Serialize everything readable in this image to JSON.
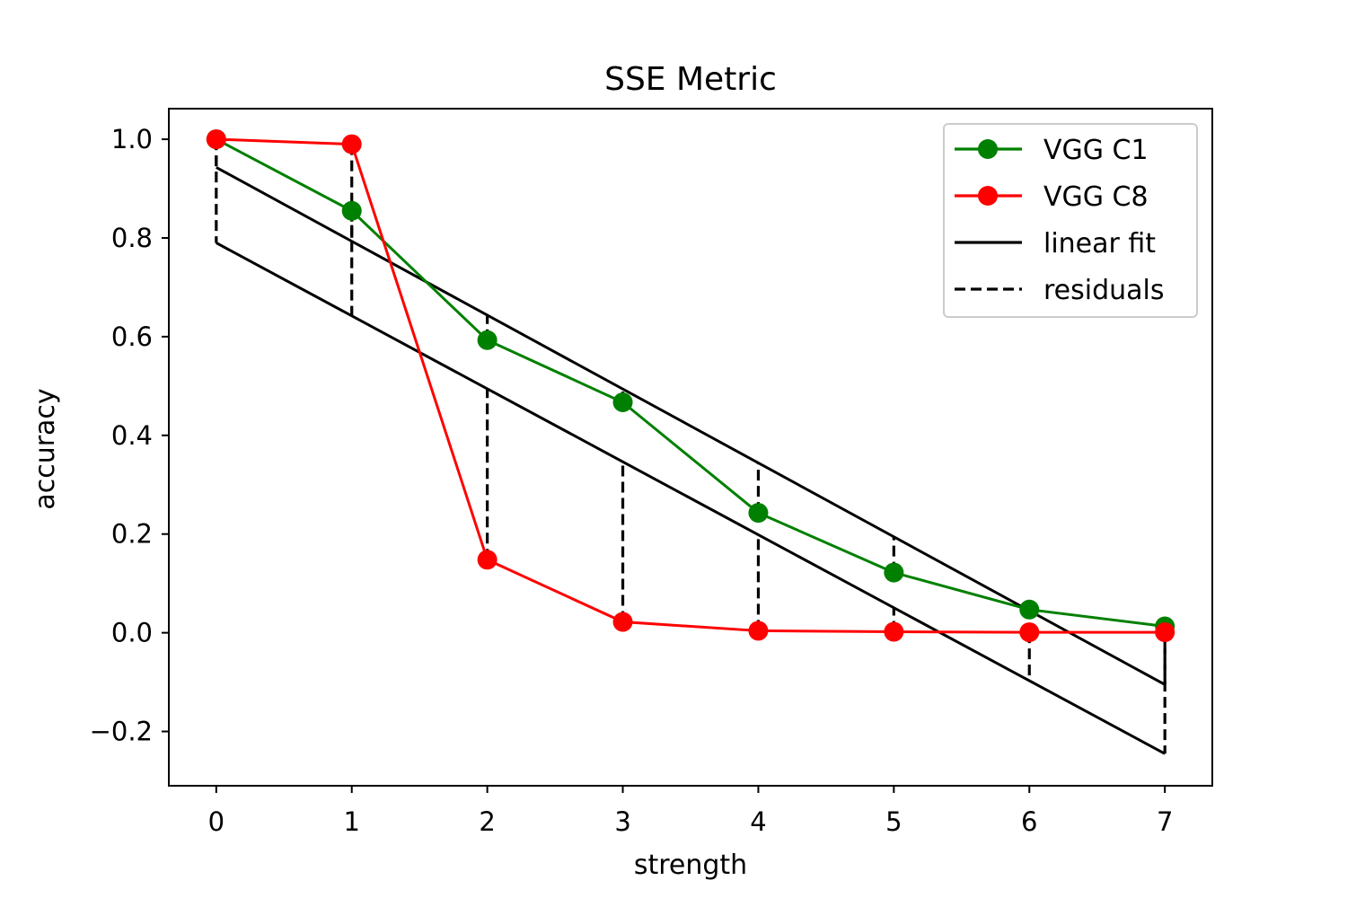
{
  "chart_data": {
    "type": "line",
    "title": "SSE Metric",
    "xlabel": "strength",
    "ylabel": "accuracy",
    "x": [
      0,
      1,
      2,
      3,
      4,
      5,
      6,
      7
    ],
    "xlim": [
      -0.35,
      7.35
    ],
    "ylim": [
      -0.31,
      1.062
    ],
    "xticks": [
      0,
      1,
      2,
      3,
      4,
      5,
      6,
      7
    ],
    "yticks": [
      -0.2,
      0.0,
      0.2,
      0.4,
      0.6,
      0.8,
      1.0
    ],
    "ytick_labels": [
      "−0.2",
      "0.0",
      "0.2",
      "0.4",
      "0.6",
      "0.8",
      "1.0"
    ],
    "grid": false,
    "legend_position": "top-right",
    "series": [
      {
        "name": "VGG C1",
        "kind": "line-marker",
        "color": "#008000",
        "values": [
          1.0,
          0.855,
          0.593,
          0.467,
          0.243,
          0.122,
          0.047,
          0.013
        ]
      },
      {
        "name": "VGG C8",
        "kind": "line-marker",
        "color": "#ff0000",
        "values": [
          1.0,
          0.99,
          0.148,
          0.022,
          0.004,
          0.002,
          0.001,
          0.001
        ]
      }
    ],
    "fits": [
      {
        "series": "VGG C1",
        "start": 0.943,
        "end": -0.105
      },
      {
        "series": "VGG C8",
        "start": 0.79,
        "end": -0.245
      }
    ],
    "legend": [
      {
        "label": "VGG C1",
        "style": "line-marker",
        "color": "#008000"
      },
      {
        "label": "VGG C8",
        "style": "line-marker",
        "color": "#ff0000"
      },
      {
        "label": "linear fit",
        "style": "solid",
        "color": "#000000"
      },
      {
        "label": "residuals",
        "style": "dashed",
        "color": "#000000"
      }
    ]
  }
}
